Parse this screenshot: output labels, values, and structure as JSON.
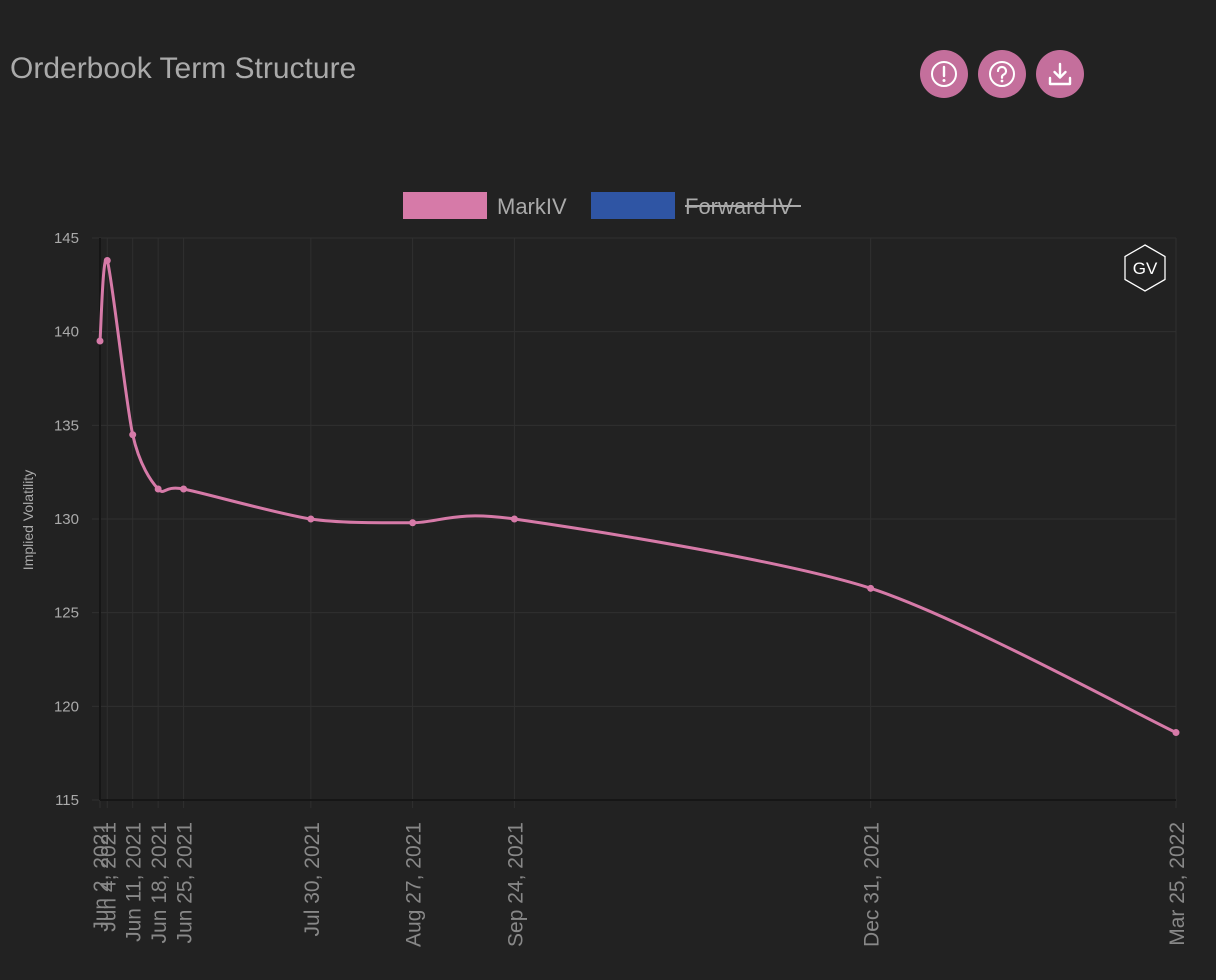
{
  "header": {
    "title": "Orderbook Term Structure"
  },
  "toolbar": {
    "buttons": [
      {
        "name": "info-button",
        "icon": "alert-circle-icon"
      },
      {
        "name": "help-button",
        "icon": "question-circle-icon"
      },
      {
        "name": "download-button",
        "icon": "download-icon"
      }
    ]
  },
  "colors": {
    "background": "#222222",
    "accent": "#c46f9c",
    "markiv": "#d67aa8",
    "forward_iv": "#2f55a4",
    "grid": "#333333",
    "text": "#aaaaaa"
  },
  "watermark": {
    "text": "GV"
  },
  "chart_data": {
    "type": "line",
    "ylabel": "Implied Volatility",
    "ylim": [
      115,
      145
    ],
    "yticks": [
      115,
      120,
      125,
      130,
      135,
      140,
      145
    ],
    "legend": {
      "placement": "top-center",
      "entries": [
        {
          "name": "MarkIV",
          "hidden": false
        },
        {
          "name": "Forward IV",
          "hidden": true
        }
      ]
    },
    "x_ticks": [
      "Jun 2, 2021",
      "Jun 4, 2021",
      "Jun 11, 2021",
      "Jun 18, 2021",
      "Jun 25, 2021",
      "Jul 30, 2021",
      "Aug 27, 2021",
      "Sep 24, 2021",
      "Dec 31, 2021",
      "Mar 25, 2022"
    ],
    "series": [
      {
        "name": "MarkIV",
        "x": [
          "2021-06-02",
          "2021-06-04",
          "2021-06-11",
          "2021-06-18",
          "2021-06-25",
          "2021-07-30",
          "2021-08-27",
          "2021-09-24",
          "2021-12-31",
          "2022-03-25"
        ],
        "values": [
          139.5,
          143.8,
          134.5,
          131.6,
          131.6,
          130.0,
          129.8,
          130.0,
          126.3,
          118.6
        ]
      }
    ]
  }
}
